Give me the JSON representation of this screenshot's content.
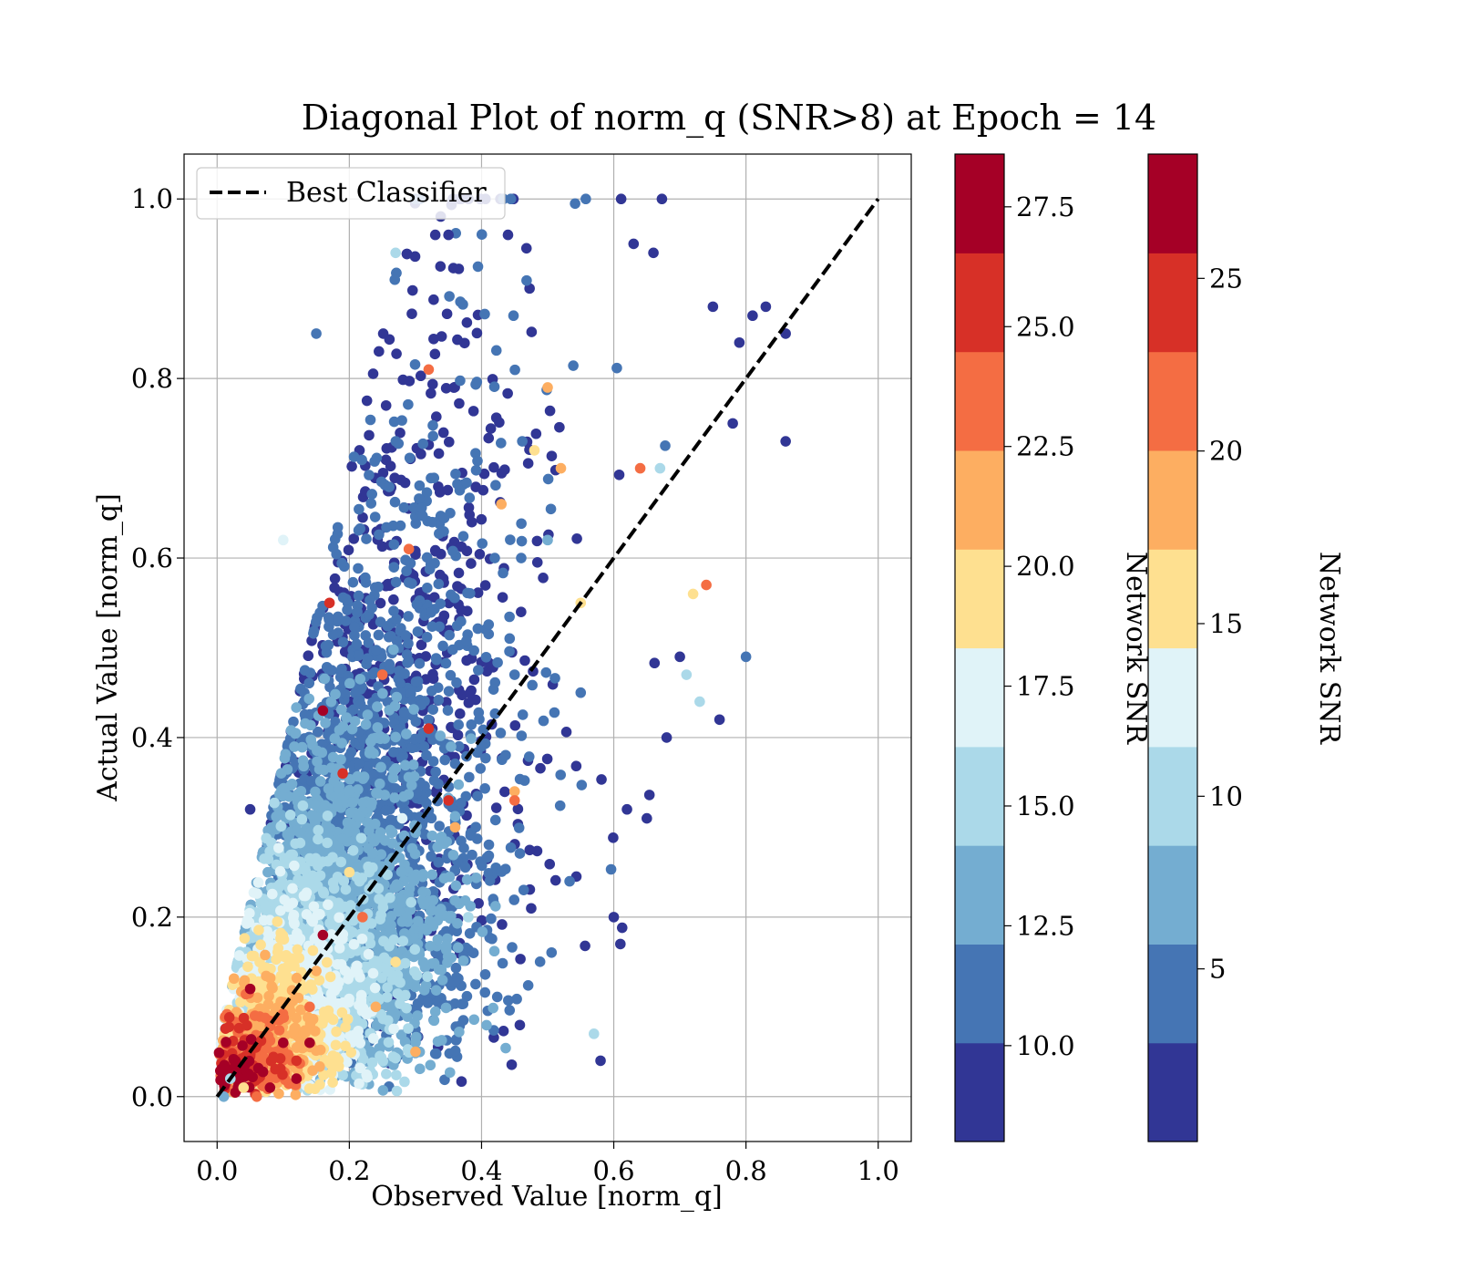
{
  "chart_data": {
    "type": "scatter",
    "title": "Diagonal Plot of norm_q (SNR>8) at Epoch = 14",
    "xlabel": "Observed Value [norm_q]",
    "ylabel": "Actual Value [norm_q]",
    "xlim": [
      -0.05,
      1.05
    ],
    "ylim": [
      -0.05,
      1.05
    ],
    "x_ticks": [
      "0.0",
      "0.2",
      "0.4",
      "0.6",
      "0.8",
      "1.0"
    ],
    "y_ticks": [
      "0.0",
      "0.2",
      "0.4",
      "0.6",
      "0.8",
      "1.0"
    ],
    "grid": true,
    "legend": {
      "position": "top-left",
      "entries": [
        {
          "label": "Best Classifier",
          "style": "dashed",
          "color": "#000000"
        }
      ]
    },
    "reference_line": {
      "label": "Best Classifier",
      "x": [
        0.0,
        1.0
      ],
      "y": [
        0.0,
        1.0
      ]
    },
    "colorbars": [
      {
        "label": "Network SNR",
        "range": [
          8,
          28.6
        ],
        "tick_labels": [
          "10.0",
          "12.5",
          "15.0",
          "17.5",
          "20.0",
          "22.5",
          "25.0",
          "27.5"
        ],
        "tick_values": [
          10.0,
          12.5,
          15.0,
          17.5,
          20.0,
          22.5,
          25.0,
          27.5
        ]
      },
      {
        "label": "Network SNR",
        "range": [
          0,
          28.6
        ],
        "tick_labels": [
          "5",
          "10",
          "15",
          "20",
          "25"
        ],
        "tick_values": [
          5,
          10,
          15,
          20,
          25
        ]
      }
    ],
    "colormap": [
      "#313695",
      "#4575b4",
      "#74add1",
      "#abd9e9",
      "#e0f3f8",
      "#fee090",
      "#fdae61",
      "#f46d43",
      "#d73027",
      "#a50026"
    ],
    "point_summary": "approximately 6000 points; dense near the origin, spreading upward toward larger actual values",
    "points": [
      {
        "x": 0.01,
        "y": 0.0,
        "snr": 14
      },
      {
        "x": 0.02,
        "y": 0.02,
        "snr": 16
      },
      {
        "x": 0.04,
        "y": 0.01,
        "snr": 20
      },
      {
        "x": 0.05,
        "y": 0.12,
        "snr": 27
      },
      {
        "x": 0.06,
        "y": 0.0,
        "snr": 24
      },
      {
        "x": 0.08,
        "y": 0.01,
        "snr": 27
      },
      {
        "x": 0.1,
        "y": 0.06,
        "snr": 27
      },
      {
        "x": 0.12,
        "y": 0.02,
        "snr": 27
      },
      {
        "x": 0.12,
        "y": 0.04,
        "snr": 25
      },
      {
        "x": 0.14,
        "y": 0.06,
        "snr": 27
      },
      {
        "x": 0.14,
        "y": 0.1,
        "snr": 23
      },
      {
        "x": 0.15,
        "y": 0.14,
        "snr": 22
      },
      {
        "x": 0.16,
        "y": 0.18,
        "snr": 27
      },
      {
        "x": 0.16,
        "y": 0.43,
        "snr": 27
      },
      {
        "x": 0.17,
        "y": 0.55,
        "snr": 26
      },
      {
        "x": 0.19,
        "y": 0.36,
        "snr": 25
      },
      {
        "x": 0.2,
        "y": 0.25,
        "snr": 20
      },
      {
        "x": 0.22,
        "y": 0.2,
        "snr": 23
      },
      {
        "x": 0.24,
        "y": 0.1,
        "snr": 21
      },
      {
        "x": 0.25,
        "y": 0.47,
        "snr": 24
      },
      {
        "x": 0.27,
        "y": 0.15,
        "snr": 20
      },
      {
        "x": 0.28,
        "y": 0.31,
        "snr": 18
      },
      {
        "x": 0.29,
        "y": 0.61,
        "snr": 23
      },
      {
        "x": 0.3,
        "y": 0.05,
        "snr": 22
      },
      {
        "x": 0.32,
        "y": 0.81,
        "snr": 23
      },
      {
        "x": 0.32,
        "y": 0.41,
        "snr": 25
      },
      {
        "x": 0.35,
        "y": 0.33,
        "snr": 25
      },
      {
        "x": 0.36,
        "y": 0.3,
        "snr": 21
      },
      {
        "x": 0.38,
        "y": 0.2,
        "snr": 16
      },
      {
        "x": 0.4,
        "y": 0.39,
        "snr": 12
      },
      {
        "x": 0.42,
        "y": 0.6,
        "snr": 12
      },
      {
        "x": 0.43,
        "y": 0.66,
        "snr": 22
      },
      {
        "x": 0.45,
        "y": 0.34,
        "snr": 21
      },
      {
        "x": 0.45,
        "y": 0.33,
        "snr": 24
      },
      {
        "x": 0.45,
        "y": 0.47,
        "snr": 12
      },
      {
        "x": 0.46,
        "y": 0.6,
        "snr": 12
      },
      {
        "x": 0.48,
        "y": 0.72,
        "snr": 20
      },
      {
        "x": 0.5,
        "y": 0.79,
        "snr": 21
      },
      {
        "x": 0.5,
        "y": 0.62,
        "snr": 14
      },
      {
        "x": 0.52,
        "y": 0.7,
        "snr": 22
      },
      {
        "x": 0.55,
        "y": 0.55,
        "snr": 19
      },
      {
        "x": 0.55,
        "y": 0.45,
        "snr": 11
      },
      {
        "x": 0.57,
        "y": 0.07,
        "snr": 15
      },
      {
        "x": 0.58,
        "y": 0.04,
        "snr": 10
      },
      {
        "x": 0.6,
        "y": 0.2,
        "snr": 9
      },
      {
        "x": 0.61,
        "y": 0.17,
        "snr": 9
      },
      {
        "x": 0.62,
        "y": 0.32,
        "snr": 9
      },
      {
        "x": 0.63,
        "y": 0.95,
        "snr": 9
      },
      {
        "x": 0.64,
        "y": 0.7,
        "snr": 23
      },
      {
        "x": 0.65,
        "y": 0.31,
        "snr": 9
      },
      {
        "x": 0.66,
        "y": 0.94,
        "snr": 9
      },
      {
        "x": 0.67,
        "y": 0.7,
        "snr": 16
      },
      {
        "x": 0.68,
        "y": 0.4,
        "snr": 9
      },
      {
        "x": 0.7,
        "y": 0.49,
        "snr": 9
      },
      {
        "x": 0.71,
        "y": 0.47,
        "snr": 16
      },
      {
        "x": 0.72,
        "y": 0.56,
        "snr": 19
      },
      {
        "x": 0.73,
        "y": 0.44,
        "snr": 15
      },
      {
        "x": 0.74,
        "y": 0.57,
        "snr": 23
      },
      {
        "x": 0.75,
        "y": 0.88,
        "snr": 9
      },
      {
        "x": 0.76,
        "y": 0.42,
        "snr": 9
      },
      {
        "x": 0.78,
        "y": 0.75,
        "snr": 9
      },
      {
        "x": 0.79,
        "y": 0.84,
        "snr": 9
      },
      {
        "x": 0.8,
        "y": 0.49,
        "snr": 11
      },
      {
        "x": 0.81,
        "y": 0.87,
        "snr": 9
      },
      {
        "x": 0.83,
        "y": 0.88,
        "snr": 9
      },
      {
        "x": 0.86,
        "y": 0.85,
        "snr": 9
      },
      {
        "x": 0.86,
        "y": 0.73,
        "snr": 9
      },
      {
        "x": 0.33,
        "y": 0.96,
        "snr": 9
      },
      {
        "x": 0.35,
        "y": 0.96,
        "snr": 9
      },
      {
        "x": 0.44,
        "y": 0.96,
        "snr": 9
      },
      {
        "x": 0.27,
        "y": 0.94,
        "snr": 16
      },
      {
        "x": 0.15,
        "y": 0.85,
        "snr": 11
      },
      {
        "x": 0.1,
        "y": 0.62,
        "snr": 17
      },
      {
        "x": 0.05,
        "y": 0.32,
        "snr": 9
      }
    ]
  }
}
